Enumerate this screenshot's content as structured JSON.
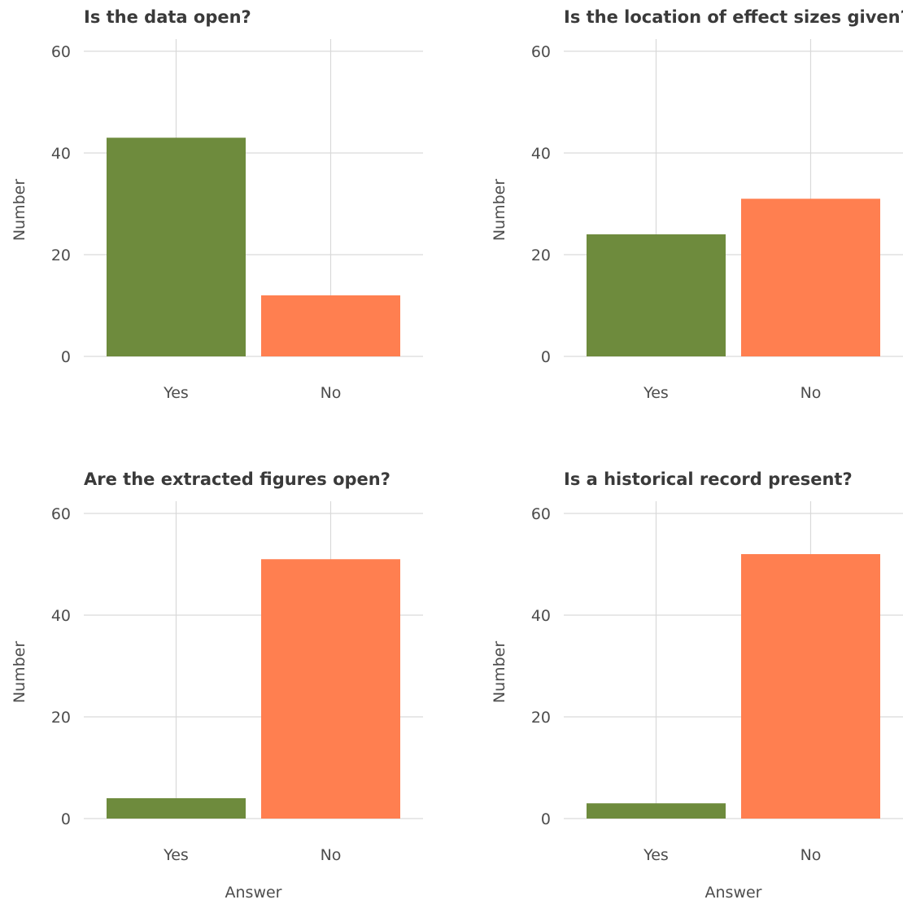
{
  "colors": {
    "yes": "#6e8b3d",
    "no": "#ff7f50",
    "grid": "#d9d9d9",
    "text": "#4d4d4d"
  },
  "axis_labels": {
    "y": "Number",
    "x": "Answer"
  },
  "chart_data": [
    {
      "type": "bar",
      "title": "Is the data open?",
      "categories": [
        "Yes",
        "No"
      ],
      "values": [
        43,
        12
      ],
      "ylabel": "Number",
      "xlabel": "",
      "ylim": [
        0,
        63
      ],
      "yticks": [
        0,
        20,
        40,
        60
      ],
      "grid": true
    },
    {
      "type": "bar",
      "title": "Is the location of effect sizes given?",
      "categories": [
        "Yes",
        "No"
      ],
      "values": [
        24,
        31
      ],
      "ylabel": "Number",
      "xlabel": "",
      "ylim": [
        0,
        63
      ],
      "yticks": [
        0,
        20,
        40,
        60
      ],
      "grid": true
    },
    {
      "type": "bar",
      "title": "Are the extracted figures open?",
      "categories": [
        "Yes",
        "No"
      ],
      "values": [
        4,
        51
      ],
      "ylabel": "Number",
      "xlabel": "Answer",
      "ylim": [
        0,
        63
      ],
      "yticks": [
        0,
        20,
        40,
        60
      ],
      "grid": true
    },
    {
      "type": "bar",
      "title": "Is a historical record present?",
      "categories": [
        "Yes",
        "No"
      ],
      "values": [
        3,
        52
      ],
      "ylabel": "Number",
      "xlabel": "Answer",
      "ylim": [
        0,
        63
      ],
      "yticks": [
        0,
        20,
        40,
        60
      ],
      "grid": true
    }
  ]
}
